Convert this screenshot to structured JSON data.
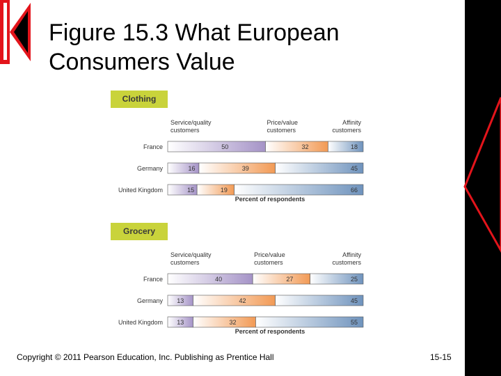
{
  "slide": {
    "title_line1": "Figure 15.3 What European",
    "title_line2": "Consumers Value",
    "footer": "Copyright © 2011 Pearson Education, Inc. Publishing as Prentice Hall",
    "slide_number": "15-15"
  },
  "colors": {
    "panel_header_fill": "#c9d33b",
    "service_quality": "#a593c7",
    "price_value": "#f29a55",
    "affinity": "#6f93bd",
    "red_accent": "#e3141b"
  },
  "chart_data": [
    {
      "type": "bar",
      "stacked": "100%",
      "orientation": "horizontal",
      "title": "Clothing",
      "categories": [
        "France",
        "Germany",
        "United Kingdom"
      ],
      "series": [
        {
          "name": "Service/quality customers",
          "values": [
            50,
            16,
            15
          ]
        },
        {
          "name": "Price/value customers",
          "values": [
            32,
            39,
            19
          ]
        },
        {
          "name": "Affinity customers",
          "values": [
            18,
            45,
            66
          ]
        }
      ],
      "xlabel": "Percent of respondents",
      "xlim": [
        0,
        100
      ]
    },
    {
      "type": "bar",
      "stacked": "100%",
      "orientation": "horizontal",
      "title": "Grocery",
      "categories": [
        "France",
        "Germany",
        "United Kingdom"
      ],
      "series": [
        {
          "name": "Service/quality customers",
          "values": [
            40,
            13,
            13
          ]
        },
        {
          "name": "Price/value customers",
          "values": [
            27,
            42,
            32
          ]
        },
        {
          "name": "Affinity customers",
          "values": [
            25,
            45,
            55
          ]
        }
      ],
      "xlabel": "Percent of respondents",
      "xlim": [
        0,
        100
      ]
    }
  ]
}
